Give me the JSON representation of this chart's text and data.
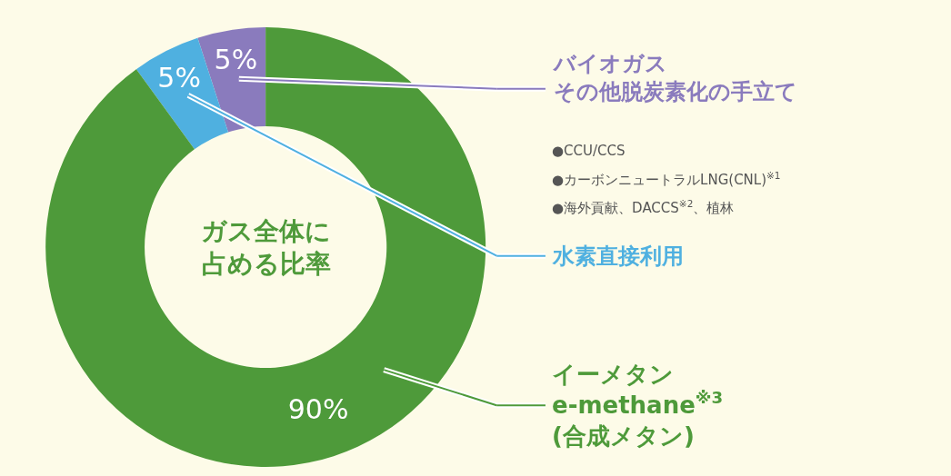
{
  "chart_data": {
    "type": "donut",
    "title": "ガス全体に占める比率",
    "categories": [
      "バイオガスその他脱炭素化の手立て",
      "水素直接利用",
      "イーメタン\ne-methane$^{※3}$\n(合成メタン)"
    ],
    "values": [
      5,
      5,
      90
    ],
    "value_labels": [
      "5%",
      "5%",
      "90%"
    ],
    "colors": [
      "#8a7bbd",
      "#4fb0e0",
      "#4e9a3a"
    ],
    "annotations": [
      "●CCU/CCS",
      "●カーボンニュートラルLNG(CNL)$^{※1}$",
      "●海外貢献、DACCS$^{※2}$、植林"
    ],
    "legend": "right"
  }
}
